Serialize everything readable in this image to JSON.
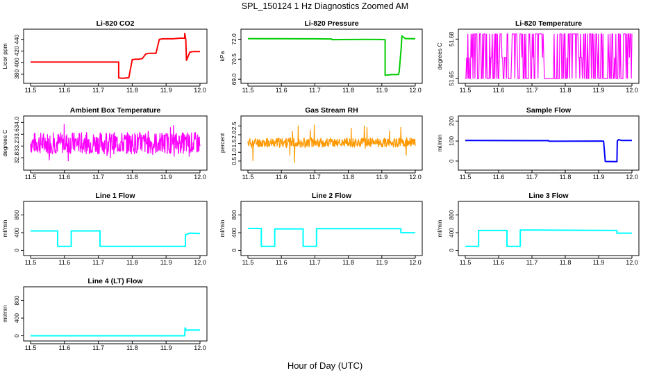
{
  "title": "SPL_150124  1 Hz Diagnostics Zoomed AM",
  "xlabel": "Hour of Day (UTC)",
  "colors": {
    "red": "#ff0000",
    "green": "#00cc00",
    "magenta": "#ff00ff",
    "orange": "#ff9900",
    "blue": "#0000ff",
    "cyan": "#00ffff",
    "axis": "#000000"
  },
  "chart_data": [
    {
      "type": "line",
      "title": "Li-820 CO2",
      "xlabel": "",
      "ylabel": "Licor ppm",
      "color": "#ff0000",
      "xlim": [
        11.5,
        12.0
      ],
      "ylim": [
        368,
        454
      ],
      "x_ticks": [
        "11.5",
        "11.6",
        "11.7",
        "11.8",
        "11.9",
        "12.0"
      ],
      "y_ticks": [
        "380",
        "400",
        "420",
        "440"
      ],
      "series": [
        {
          "x": [
            11.5,
            11.76,
            11.76,
            11.77,
            11.77,
            11.79,
            11.8,
            11.81,
            11.82,
            11.83,
            11.84,
            11.85,
            11.86,
            11.87,
            11.88,
            11.89,
            11.9,
            11.92,
            11.94,
            11.955,
            11.955,
            11.958,
            11.96,
            11.97,
            11.98,
            12.0
          ],
          "y": [
            401,
            401,
            374,
            373,
            373,
            374,
            405,
            406,
            406,
            407,
            415,
            416,
            416,
            416,
            440,
            441,
            441,
            441,
            442,
            442,
            450,
            440,
            404,
            418,
            419,
            419
          ]
        }
      ]
    },
    {
      "type": "line",
      "title": "Li-820 Pressure",
      "xlabel": "",
      "ylabel": "kPa",
      "color": "#00cc00",
      "xlim": [
        11.5,
        12.0
      ],
      "ylim": [
        68.85,
        72.6
      ],
      "x_ticks": [
        "11.5",
        "11.6",
        "11.7",
        "11.8",
        "11.9",
        "12.0"
      ],
      "y_ticks": [
        "69.0",
        "70.5",
        "72.0"
      ],
      "series": [
        {
          "x": [
            11.5,
            11.6,
            11.7,
            11.75,
            11.751,
            11.8,
            11.85,
            11.9,
            11.91,
            11.91,
            11.93,
            11.95,
            11.952,
            11.958,
            11.96,
            11.965,
            11.97,
            11.98,
            12.0
          ],
          "y": [
            72.05,
            72.04,
            72.03,
            72.02,
            71.97,
            71.98,
            71.99,
            71.98,
            71.96,
            69.3,
            69.35,
            69.35,
            69.6,
            71.4,
            72.25,
            72.15,
            72.05,
            72.05,
            72.03
          ]
        }
      ]
    },
    {
      "type": "line",
      "title": "Li-820 Temperature",
      "xlabel": "",
      "ylabel": "degrees C",
      "color": "#ff00ff",
      "xlim": [
        11.5,
        12.0
      ],
      "ylim": [
        51.648,
        51.686
      ],
      "x_ticks": [
        "11.5",
        "11.6",
        "11.7",
        "11.8",
        "11.9",
        "12.0"
      ],
      "y_ticks": [
        "51.65",
        "51.68"
      ],
      "noise": {
        "kind": "binary",
        "levels": [
          51.65,
          51.666,
          51.684
        ],
        "n": 260,
        "seed": 3
      }
    },
    {
      "type": "line",
      "title": "Ambient Box Temperature",
      "xlabel": "",
      "ylabel": "degrees C",
      "color": "#ff00ff",
      "xlim": [
        11.5,
        12.0
      ],
      "ylim": [
        32.45,
        34.15
      ],
      "x_ticks": [
        "11.5",
        "11.6",
        "11.7",
        "11.8",
        "11.9",
        "12.0"
      ],
      "y_ticks": [
        "32.8",
        "33.2",
        "33.6",
        "34.0"
      ],
      "noise": {
        "kind": "band",
        "center": 33.3,
        "amp": 0.38,
        "spike": 0.7,
        "n": 500,
        "seed": 7
      }
    },
    {
      "type": "line",
      "title": "Gas Stream RH",
      "xlabel": "",
      "ylabel": "percent",
      "color": "#ff9900",
      "xlim": [
        11.5,
        12.0
      ],
      "ylim": [
        0.1,
        2.95
      ],
      "x_ticks": [
        "11.5",
        "11.6",
        "11.7",
        "11.8",
        "11.9",
        "12.0"
      ],
      "y_ticks": [
        "0.5",
        "1.0",
        "1.5",
        "2.0",
        "2.5"
      ],
      "noise": {
        "kind": "band",
        "center": 1.55,
        "amp": 0.28,
        "spike": 1.2,
        "n": 500,
        "seed": 11
      }
    },
    {
      "type": "line",
      "title": "Sample Flow",
      "xlabel": "",
      "ylabel": "ml/min",
      "color": "#0000ff",
      "xlim": [
        11.5,
        12.0
      ],
      "ylim": [
        -35,
        215
      ],
      "x_ticks": [
        "11.5",
        "11.6",
        "11.7",
        "11.8",
        "11.9",
        "12.0"
      ],
      "y_ticks": [
        "0",
        "100",
        "200"
      ],
      "series": [
        {
          "x": [
            11.5,
            11.75,
            11.751,
            11.91,
            11.915,
            11.92,
            11.955,
            11.956,
            11.96,
            11.97,
            12.0
          ],
          "y": [
            103,
            102,
            99,
            100,
            99,
            -2,
            -3,
            100,
            107,
            103,
            103
          ]
        }
      ]
    },
    {
      "type": "line",
      "title": "Line 1 Flow",
      "xlabel": "",
      "ylabel": "ml/min",
      "color": "#00ffff",
      "xlim": [
        11.5,
        12.0
      ],
      "ylim": [
        -70,
        1060
      ],
      "x_ticks": [
        "11.5",
        "11.6",
        "11.7",
        "11.8",
        "11.9",
        "12.0"
      ],
      "y_ticks": [
        "0",
        "400",
        "800"
      ],
      "series": [
        {
          "x": [
            11.5,
            11.58,
            11.58,
            11.62,
            11.62,
            11.705,
            11.705,
            11.957,
            11.957,
            11.97,
            12.0
          ],
          "y": [
            440,
            440,
            90,
            90,
            440,
            440,
            90,
            90,
            350,
            390,
            380
          ]
        }
      ]
    },
    {
      "type": "line",
      "title": "Line 2 Flow",
      "xlabel": "",
      "ylabel": "ml/min",
      "color": "#00ffff",
      "xlim": [
        11.5,
        12.0
      ],
      "ylim": [
        -70,
        1060
      ],
      "x_ticks": [
        "11.5",
        "11.6",
        "11.7",
        "11.8",
        "11.9",
        "12.0"
      ],
      "y_ticks": [
        "0",
        "400",
        "800"
      ],
      "series": [
        {
          "x": [
            11.5,
            11.54,
            11.54,
            11.58,
            11.58,
            11.665,
            11.665,
            11.705,
            11.705,
            11.957,
            11.957,
            12.0
          ],
          "y": [
            495,
            495,
            90,
            90,
            485,
            485,
            90,
            90,
            490,
            490,
            400,
            400
          ]
        }
      ]
    },
    {
      "type": "line",
      "title": "Line 3 Flow",
      "xlabel": "",
      "ylabel": "ml/min",
      "color": "#00ffff",
      "xlim": [
        11.5,
        12.0
      ],
      "ylim": [
        -70,
        1060
      ],
      "x_ticks": [
        "11.5",
        "11.6",
        "11.7",
        "11.8",
        "11.9",
        "12.0"
      ],
      "y_ticks": [
        "0",
        "400",
        "800"
      ],
      "series": [
        {
          "x": [
            11.5,
            11.54,
            11.54,
            11.625,
            11.625,
            11.665,
            11.665,
            11.955,
            11.955,
            12.0
          ],
          "y": [
            90,
            90,
            450,
            450,
            90,
            90,
            460,
            450,
            390,
            390
          ]
        }
      ]
    },
    {
      "type": "line",
      "title": "Line 4 (LT) Flow",
      "xlabel": "",
      "ylabel": "ml/min",
      "color": "#00ffff",
      "xlim": [
        11.5,
        12.0
      ],
      "ylim": [
        -70,
        1060
      ],
      "x_ticks": [
        "11.5",
        "11.6",
        "11.7",
        "11.8",
        "11.9",
        "12.0"
      ],
      "y_ticks": [
        "0",
        "400",
        "800"
      ],
      "series": [
        {
          "x": [
            11.5,
            11.955,
            11.956,
            11.96,
            11.97,
            12.0
          ],
          "y": [
            0,
            0,
            180,
            125,
            130,
            130
          ]
        }
      ]
    }
  ]
}
